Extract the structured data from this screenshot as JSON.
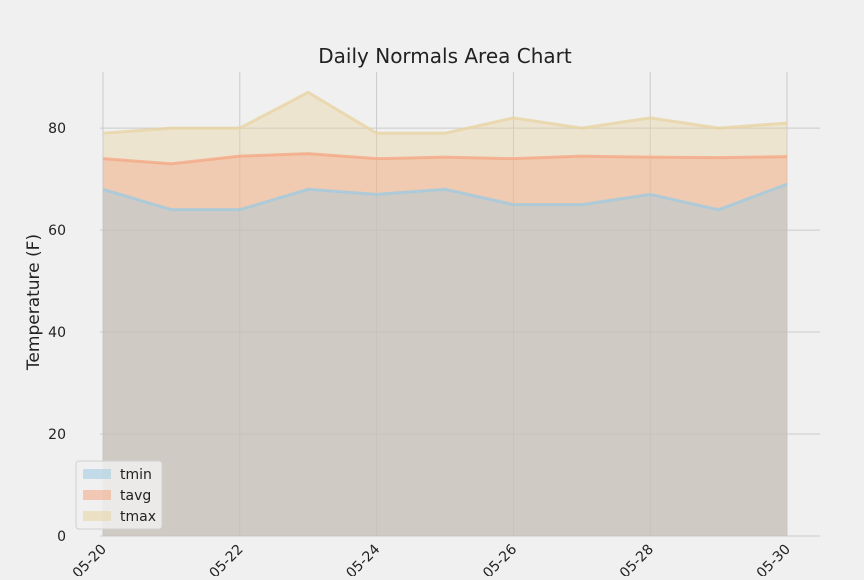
{
  "chart_data": {
    "type": "area",
    "title": "Daily Normals Area Chart",
    "xlabel": "",
    "ylabel": "Temperature (F)",
    "x": [
      "05-20",
      "05-21",
      "05-22",
      "05-23",
      "05-24",
      "05-25",
      "05-26",
      "05-27",
      "05-28",
      "05-29",
      "05-30"
    ],
    "x_tick_labels": [
      "05-20",
      "05-22",
      "05-24",
      "05-26",
      "05-28",
      "05-30"
    ],
    "y_ticks": [
      0,
      20,
      40,
      60,
      80
    ],
    "ylim": [
      0,
      91
    ],
    "stacked": false,
    "grid": true,
    "legend_position": "lower-left",
    "series": [
      {
        "name": "tmin",
        "values": [
          68,
          64,
          64,
          68,
          67,
          68,
          65,
          65,
          67,
          64,
          69
        ],
        "color": "#9ecae1"
      },
      {
        "name": "tavg",
        "values": [
          74,
          73,
          74.5,
          75,
          74,
          74.3,
          74,
          74.5,
          74.3,
          74.2,
          74.4
        ],
        "color": "#f4a582"
      },
      {
        "name": "tmax",
        "values": [
          79,
          80,
          80,
          87,
          79,
          79,
          82,
          80,
          82,
          80,
          81
        ],
        "color": "#e8d3a0"
      }
    ]
  }
}
